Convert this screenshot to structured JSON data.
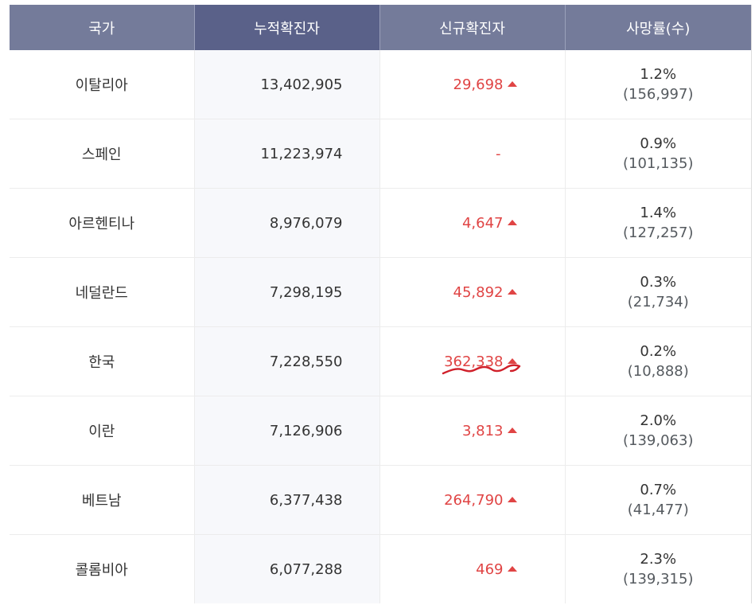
{
  "table": {
    "headers": [
      "국가",
      "누적확진자",
      "신규확진자",
      "사망률(수)"
    ],
    "rows": [
      {
        "country": "이탈리아",
        "cumulative": "13,402,905",
        "new_cases": "29,698",
        "rate": "1.2%",
        "deaths": "(156,997)"
      },
      {
        "country": "스페인",
        "cumulative": "11,223,974",
        "new_cases": "-",
        "rate": "0.9%",
        "deaths": "(101,135)"
      },
      {
        "country": "아르헨티나",
        "cumulative": "8,976,079",
        "new_cases": "4,647",
        "rate": "1.4%",
        "deaths": "(127,257)"
      },
      {
        "country": "네덜란드",
        "cumulative": "7,298,195",
        "new_cases": "45,892",
        "rate": "0.3%",
        "deaths": "(21,734)"
      },
      {
        "country": "한국",
        "cumulative": "7,228,550",
        "new_cases": "362,338",
        "rate": "0.2%",
        "deaths": "(10,888)"
      },
      {
        "country": "이란",
        "cumulative": "7,126,906",
        "new_cases": "3,813",
        "rate": "2.0%",
        "deaths": "(139,063)"
      },
      {
        "country": "베트남",
        "cumulative": "6,377,438",
        "new_cases": "264,790",
        "rate": "0.7%",
        "deaths": "(41,477)"
      },
      {
        "country": "콜롬비아",
        "cumulative": "6,077,288",
        "new_cases": "469",
        "rate": "2.3%",
        "deaths": "(139,315)"
      }
    ]
  },
  "colors": {
    "header_bg": "#747b9a",
    "header_active_bg": "#5a6189",
    "increase_red": "#e04444",
    "scribble": "#d0202a"
  },
  "icons": {
    "increase": "up-triangle-icon"
  }
}
